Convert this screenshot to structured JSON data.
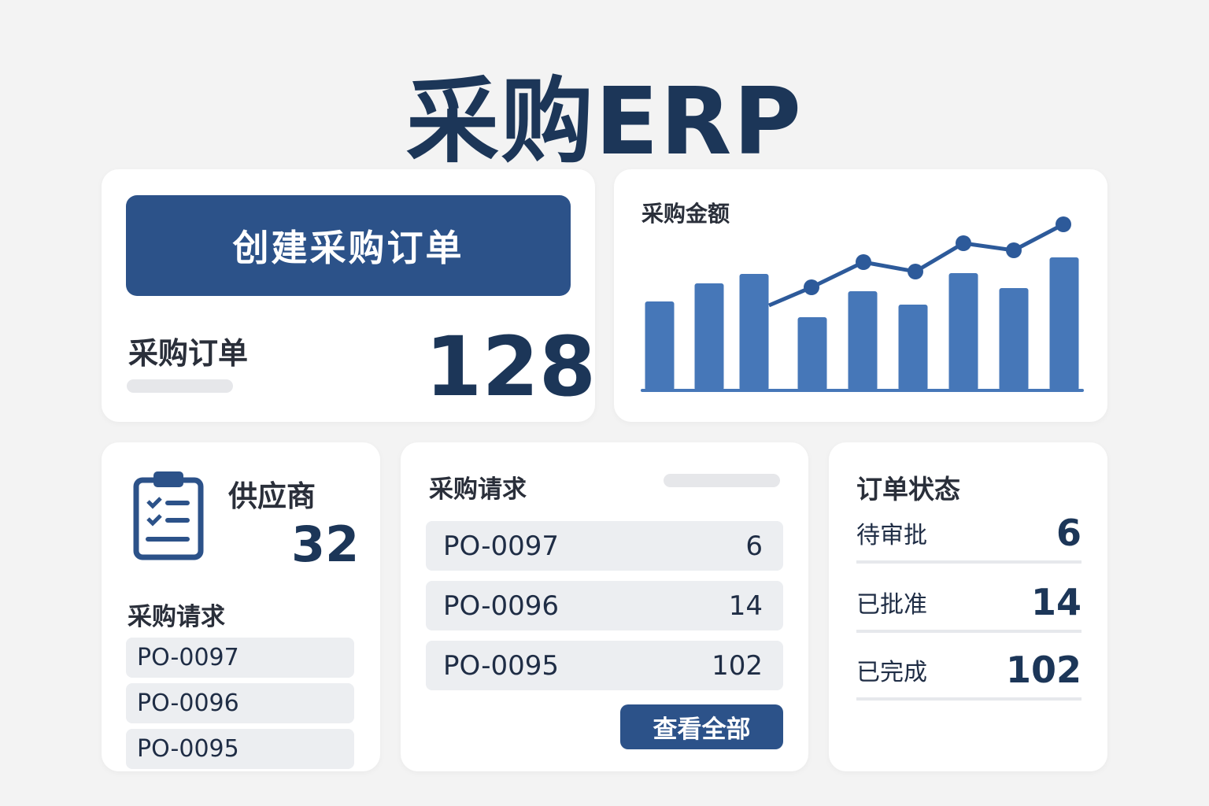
{
  "title": "采购ERP",
  "orders_card": {
    "create_button": "创建采购订单",
    "label": "采购订单",
    "count": "128"
  },
  "chart_card": {
    "title": "采购金额"
  },
  "chart_data": {
    "type": "bar",
    "title": "采购金额",
    "bars": [
      113,
      136,
      148,
      93,
      126,
      109,
      149,
      130,
      169
    ],
    "line": [
      108,
      131,
      163,
      151,
      187,
      178,
      211
    ],
    "color": "#4677b8",
    "line_color": "#2d5a9a"
  },
  "supplier_card": {
    "icon": "clipboard-checklist-icon",
    "label": "供应商",
    "count": "32",
    "requests_title": "采购请求",
    "requests": [
      "PO-0097",
      "PO-0096",
      "PO-0095"
    ]
  },
  "requests_card": {
    "title": "采购请求",
    "rows": [
      {
        "id": "PO-0097",
        "qty": "6"
      },
      {
        "id": "PO-0096",
        "qty": "14"
      },
      {
        "id": "PO-0095",
        "qty": "102"
      }
    ],
    "view_all": "查看全部"
  },
  "status_card": {
    "title": "订单状态",
    "rows": [
      {
        "label": "待审批",
        "value": "6"
      },
      {
        "label": "已批准",
        "value": "14"
      },
      {
        "label": "已完成",
        "value": "102"
      }
    ]
  },
  "colors": {
    "primary": "#2c5289",
    "heading": "#1c3658",
    "bar": "#4677b8"
  }
}
